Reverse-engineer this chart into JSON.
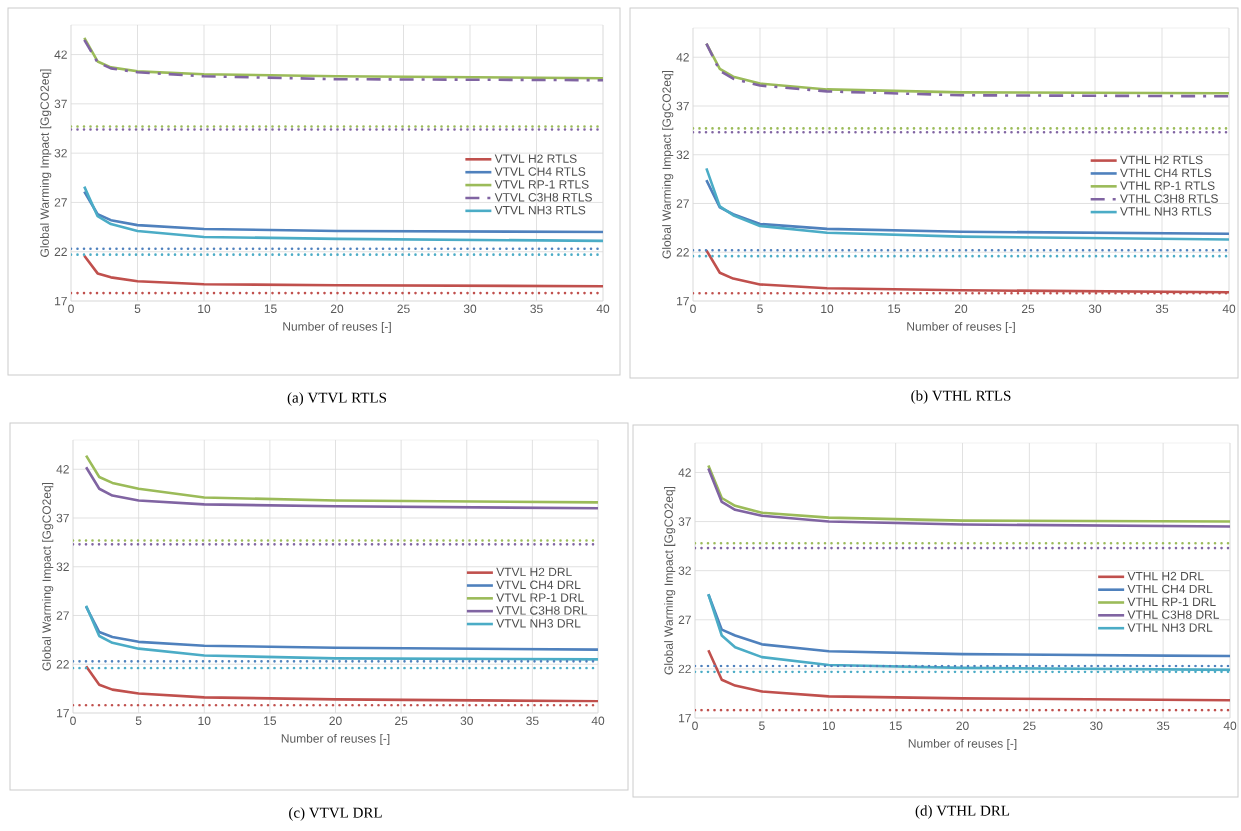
{
  "chart_data": [
    {
      "type": "line",
      "title": "(a) VTVL RTLS",
      "xlabel": "Number of reuses [-]",
      "ylabel": "Global Warming Impact [GgCO2eq]",
      "xlim": [
        0,
        40
      ],
      "ylim": [
        17,
        45
      ],
      "xticks": [
        0,
        5,
        10,
        15,
        20,
        25,
        30,
        35,
        40
      ],
      "yticks": [
        17,
        22,
        27,
        32,
        37,
        42
      ],
      "grid": true,
      "legend": "right",
      "x": [
        1,
        2,
        3,
        5,
        10,
        20,
        40
      ],
      "series": [
        {
          "name": "VTVL H2 RTLS",
          "color": "#c0504d",
          "line_style": "solid",
          "values": [
            21.6,
            19.8,
            19.4,
            19.0,
            18.7,
            18.6,
            18.5
          ]
        },
        {
          "name": "VTVL CH4 RTLS",
          "color": "#4f81bd",
          "line_style": "solid",
          "values": [
            28.1,
            25.8,
            25.2,
            24.7,
            24.3,
            24.1,
            24.0
          ]
        },
        {
          "name": "VTVL RP-1 RTLS",
          "color": "#9bbb59",
          "line_style": "solid",
          "values": [
            43.7,
            41.3,
            40.7,
            40.3,
            40.0,
            39.8,
            39.6
          ]
        },
        {
          "name": "VTVL C3H8 RTLS",
          "color": "#8064a2",
          "line_style": "dashdot",
          "values": [
            43.5,
            41.2,
            40.6,
            40.2,
            39.8,
            39.5,
            39.4
          ]
        },
        {
          "name": "VTVL NH3 RTLS",
          "color": "#4bacc6",
          "line_style": "solid",
          "values": [
            28.6,
            25.6,
            24.8,
            24.1,
            23.5,
            23.3,
            23.1
          ]
        }
      ],
      "ref_lines": [
        {
          "axis": "y",
          "value": 34.7,
          "color": "#9bbb59",
          "line_style": "dotted"
        },
        {
          "axis": "y",
          "value": 34.4,
          "color": "#8064a2",
          "line_style": "dotted"
        },
        {
          "axis": "y",
          "value": 22.3,
          "color": "#4f81bd",
          "line_style": "dotted"
        },
        {
          "axis": "y",
          "value": 21.7,
          "color": "#4bacc6",
          "line_style": "dotted"
        },
        {
          "axis": "y",
          "value": 17.8,
          "color": "#c0504d",
          "line_style": "dotted"
        }
      ]
    },
    {
      "type": "line",
      "title": "(b) VTHL RTLS",
      "xlabel": "Number of reuses [-]",
      "ylabel": "Global Warming Impact [GgCO2eq]",
      "xlim": [
        0,
        40
      ],
      "ylim": [
        17,
        45
      ],
      "xticks": [
        0,
        5,
        10,
        15,
        20,
        25,
        30,
        35,
        40
      ],
      "yticks": [
        17,
        22,
        27,
        32,
        37,
        42
      ],
      "grid": true,
      "legend": "right",
      "x": [
        1,
        2,
        3,
        5,
        10,
        20,
        40
      ],
      "series": [
        {
          "name": "VTHL H2 RTLS",
          "color": "#c0504d",
          "line_style": "solid",
          "values": [
            22.2,
            19.9,
            19.3,
            18.7,
            18.3,
            18.1,
            17.9
          ]
        },
        {
          "name": "VTHL CH4 RTLS",
          "color": "#4f81bd",
          "line_style": "solid",
          "values": [
            29.4,
            26.6,
            25.9,
            24.9,
            24.4,
            24.1,
            23.9
          ]
        },
        {
          "name": "VTHL RP-1 RTLS",
          "color": "#9bbb59",
          "line_style": "solid",
          "values": [
            43.4,
            40.8,
            40.0,
            39.3,
            38.7,
            38.4,
            38.3
          ]
        },
        {
          "name": "VTHL C3H8 RTLS",
          "color": "#8064a2",
          "line_style": "dashdot",
          "values": [
            43.4,
            40.6,
            39.8,
            39.1,
            38.5,
            38.1,
            38.0
          ]
        },
        {
          "name": "VTHL NH3 RTLS",
          "color": "#4bacc6",
          "line_style": "solid",
          "values": [
            30.6,
            26.7,
            25.8,
            24.7,
            24.0,
            23.6,
            23.3
          ]
        }
      ],
      "ref_lines": [
        {
          "axis": "y",
          "value": 34.7,
          "color": "#9bbb59",
          "line_style": "dotted"
        },
        {
          "axis": "y",
          "value": 34.3,
          "color": "#8064a2",
          "line_style": "dotted"
        },
        {
          "axis": "y",
          "value": 22.2,
          "color": "#4f81bd",
          "line_style": "dotted"
        },
        {
          "axis": "y",
          "value": 21.6,
          "color": "#4bacc6",
          "line_style": "dotted"
        },
        {
          "axis": "y",
          "value": 17.8,
          "color": "#c0504d",
          "line_style": "dotted"
        }
      ]
    },
    {
      "type": "line",
      "title": "(c) VTVL DRL",
      "xlabel": "Number of reuses [-]",
      "ylabel": "Global Warming Impact [GgCO2eq]",
      "xlim": [
        0,
        40
      ],
      "ylim": [
        17,
        45
      ],
      "xticks": [
        0,
        5,
        10,
        15,
        20,
        25,
        30,
        35,
        40
      ],
      "yticks": [
        17,
        22,
        27,
        32,
        37,
        42
      ],
      "grid": true,
      "legend": "right",
      "x": [
        1,
        2,
        3,
        5,
        10,
        20,
        40
      ],
      "series": [
        {
          "name": "VTVL H2 DRL",
          "color": "#c0504d",
          "line_style": "solid",
          "values": [
            21.8,
            19.9,
            19.4,
            19.0,
            18.6,
            18.4,
            18.2
          ]
        },
        {
          "name": "VTVL CH4 DRL",
          "color": "#4f81bd",
          "line_style": "solid",
          "values": [
            27.9,
            25.3,
            24.8,
            24.3,
            23.9,
            23.7,
            23.5
          ]
        },
        {
          "name": "VTVL RP-1 DRL",
          "color": "#9bbb59",
          "line_style": "solid",
          "values": [
            43.4,
            41.2,
            40.6,
            40.0,
            39.1,
            38.8,
            38.6
          ]
        },
        {
          "name": "VTVL C3H8 DRL",
          "color": "#8064a2",
          "line_style": "solid",
          "values": [
            42.2,
            40.0,
            39.3,
            38.8,
            38.4,
            38.2,
            38.0
          ]
        },
        {
          "name": "VTVL NH3 DRL",
          "color": "#4bacc6",
          "line_style": "solid",
          "values": [
            28.0,
            24.9,
            24.2,
            23.6,
            22.9,
            22.6,
            22.5
          ]
        }
      ],
      "ref_lines": [
        {
          "axis": "y",
          "value": 34.7,
          "color": "#9bbb59",
          "line_style": "dotted"
        },
        {
          "axis": "y",
          "value": 34.3,
          "color": "#8064a2",
          "line_style": "dotted"
        },
        {
          "axis": "y",
          "value": 22.3,
          "color": "#4f81bd",
          "line_style": "dotted"
        },
        {
          "axis": "y",
          "value": 21.6,
          "color": "#4bacc6",
          "line_style": "dotted"
        },
        {
          "axis": "y",
          "value": 17.8,
          "color": "#c0504d",
          "line_style": "dotted"
        }
      ]
    },
    {
      "type": "line",
      "title": "(d) VTHL DRL",
      "xlabel": "Number of reuses [-]",
      "ylabel": "Global Warming Impact [GgCO2eq]",
      "xlim": [
        0,
        40
      ],
      "ylim": [
        17,
        45
      ],
      "xticks": [
        0,
        5,
        10,
        15,
        20,
        25,
        30,
        35,
        40
      ],
      "yticks": [
        17,
        22,
        27,
        32,
        37,
        42
      ],
      "grid": true,
      "legend": "right",
      "x": [
        1,
        2,
        3,
        5,
        10,
        20,
        40
      ],
      "series": [
        {
          "name": "VTHL H2 DRL",
          "color": "#c0504d",
          "line_style": "solid",
          "values": [
            23.9,
            20.9,
            20.3,
            19.7,
            19.2,
            19.0,
            18.8
          ]
        },
        {
          "name": "VTHL CH4 DRL",
          "color": "#4f81bd",
          "line_style": "solid",
          "values": [
            29.6,
            26.0,
            25.4,
            24.5,
            23.8,
            23.5,
            23.3
          ]
        },
        {
          "name": "VTHL RP-1 DRL",
          "color": "#9bbb59",
          "line_style": "solid",
          "values": [
            42.7,
            39.4,
            38.6,
            37.9,
            37.4,
            37.1,
            37.0
          ]
        },
        {
          "name": "VTHL C3H8 DRL",
          "color": "#8064a2",
          "line_style": "solid",
          "values": [
            42.4,
            39.0,
            38.2,
            37.6,
            37.0,
            36.7,
            36.5
          ]
        },
        {
          "name": "VTHL NH3 DRL",
          "color": "#4bacc6",
          "line_style": "solid",
          "values": [
            29.6,
            25.4,
            24.2,
            23.2,
            22.4,
            22.1,
            21.9
          ]
        }
      ],
      "ref_lines": [
        {
          "axis": "y",
          "value": 34.8,
          "color": "#9bbb59",
          "line_style": "dotted"
        },
        {
          "axis": "y",
          "value": 34.3,
          "color": "#8064a2",
          "line_style": "dotted"
        },
        {
          "axis": "y",
          "value": 22.3,
          "color": "#4f81bd",
          "line_style": "dotted"
        },
        {
          "axis": "y",
          "value": 21.7,
          "color": "#4bacc6",
          "line_style": "dotted"
        },
        {
          "axis": "y",
          "value": 17.8,
          "color": "#c0504d",
          "line_style": "dotted"
        }
      ]
    }
  ]
}
